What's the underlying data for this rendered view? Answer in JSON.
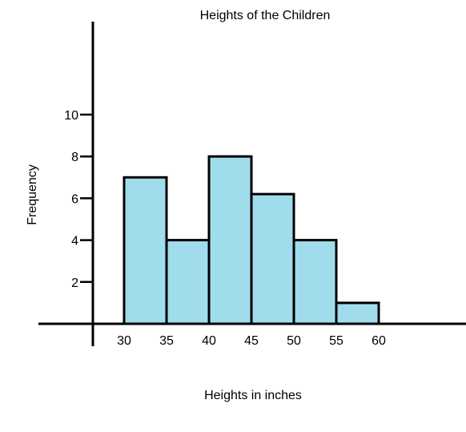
{
  "chart_data": {
    "type": "bar",
    "title": "Heights of the Children",
    "xlabel": "Heights in inches",
    "ylabel": "Frequency",
    "x_ticks": [
      "30",
      "35",
      "40",
      "45",
      "50",
      "55",
      "60"
    ],
    "y_ticks": [
      "2",
      "4",
      "6",
      "8",
      "10"
    ],
    "bins": [
      {
        "from": 30,
        "to": 35,
        "value": 7
      },
      {
        "from": 35,
        "to": 40,
        "value": 4
      },
      {
        "from": 40,
        "to": 45,
        "value": 8
      },
      {
        "from": 45,
        "to": 50,
        "value": 6.2
      },
      {
        "from": 50,
        "to": 55,
        "value": 4
      },
      {
        "from": 55,
        "to": 60,
        "value": 1
      }
    ],
    "xlim": [
      30,
      60
    ],
    "ylim": [
      0,
      10
    ],
    "grid": false,
    "bar_color": "#a0dcec",
    "edge_color": "#000000"
  }
}
